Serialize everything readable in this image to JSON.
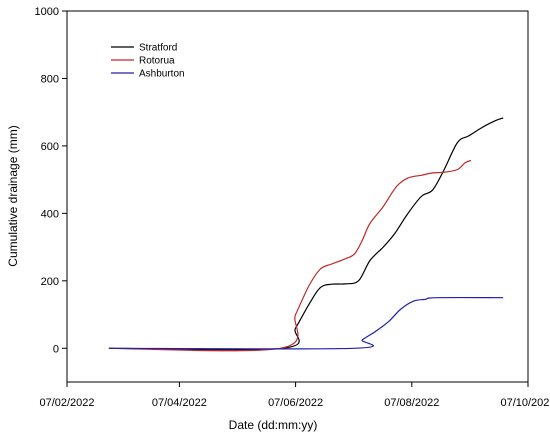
{
  "chart_data": {
    "type": "line",
    "xlabel": "Date (dd:mm:yy)",
    "ylabel": "Cumulative drainage (mm)",
    "xlim": [
      "2022-02-07",
      "2022-10-07"
    ],
    "ylim": [
      -100,
      1000
    ],
    "x_ticks": [
      "2022-02-07",
      "2022-04-07",
      "2022-06-07",
      "2022-08-07",
      "2022-10-07"
    ],
    "x_tick_labels": [
      "07/02/2022",
      "07/04/2022",
      "07/06/2022",
      "07/08/2022",
      "07/10/2022"
    ],
    "y_ticks": [
      0,
      200,
      400,
      600,
      800,
      1000
    ],
    "y_tick_labels": [
      "0",
      "200",
      "400",
      "600",
      "800",
      "1000"
    ],
    "grid": false,
    "legend": "top-left",
    "series": [
      {
        "name": "Stratford",
        "color": "#000000",
        "points": [
          [
            "2022-03-01",
            0
          ],
          [
            "2022-05-31",
            0
          ],
          [
            "2022-06-07",
            60
          ],
          [
            "2022-06-14",
            130
          ],
          [
            "2022-06-20",
            180
          ],
          [
            "2022-06-26",
            190
          ],
          [
            "2022-07-03",
            191
          ],
          [
            "2022-07-10",
            200
          ],
          [
            "2022-07-16",
            260
          ],
          [
            "2022-07-23",
            300
          ],
          [
            "2022-07-29",
            340
          ],
          [
            "2022-08-05",
            400
          ],
          [
            "2022-08-12",
            450
          ],
          [
            "2022-08-18",
            470
          ],
          [
            "2022-08-24",
            530
          ],
          [
            "2022-08-31",
            610
          ],
          [
            "2022-09-06",
            630
          ],
          [
            "2022-09-13",
            655
          ],
          [
            "2022-09-20",
            675
          ],
          [
            "2022-09-24",
            683
          ]
        ]
      },
      {
        "name": "Rotorua",
        "color": "#c0282a",
        "points": [
          [
            "2022-03-01",
            0
          ],
          [
            "2022-05-30",
            0
          ],
          [
            "2022-06-07",
            100
          ],
          [
            "2022-06-14",
            185
          ],
          [
            "2022-06-20",
            235
          ],
          [
            "2022-06-26",
            250
          ],
          [
            "2022-07-03",
            265
          ],
          [
            "2022-07-08",
            280
          ],
          [
            "2022-07-12",
            320
          ],
          [
            "2022-07-16",
            370
          ],
          [
            "2022-07-23",
            420
          ],
          [
            "2022-07-30",
            480
          ],
          [
            "2022-08-05",
            505
          ],
          [
            "2022-08-12",
            513
          ],
          [
            "2022-08-18",
            520
          ],
          [
            "2022-08-24",
            522
          ],
          [
            "2022-08-31",
            530
          ],
          [
            "2022-09-04",
            550
          ],
          [
            "2022-09-07",
            557
          ]
        ]
      },
      {
        "name": "Ashburton",
        "color": "#2020a8",
        "points": [
          [
            "2022-03-01",
            0
          ],
          [
            "2022-07-07",
            0
          ],
          [
            "2022-07-12",
            25
          ],
          [
            "2022-07-19",
            50
          ],
          [
            "2022-07-26",
            80
          ],
          [
            "2022-08-01",
            115
          ],
          [
            "2022-08-08",
            140
          ],
          [
            "2022-08-14",
            145
          ],
          [
            "2022-08-20",
            150
          ],
          [
            "2022-09-24",
            150
          ]
        ]
      }
    ]
  }
}
